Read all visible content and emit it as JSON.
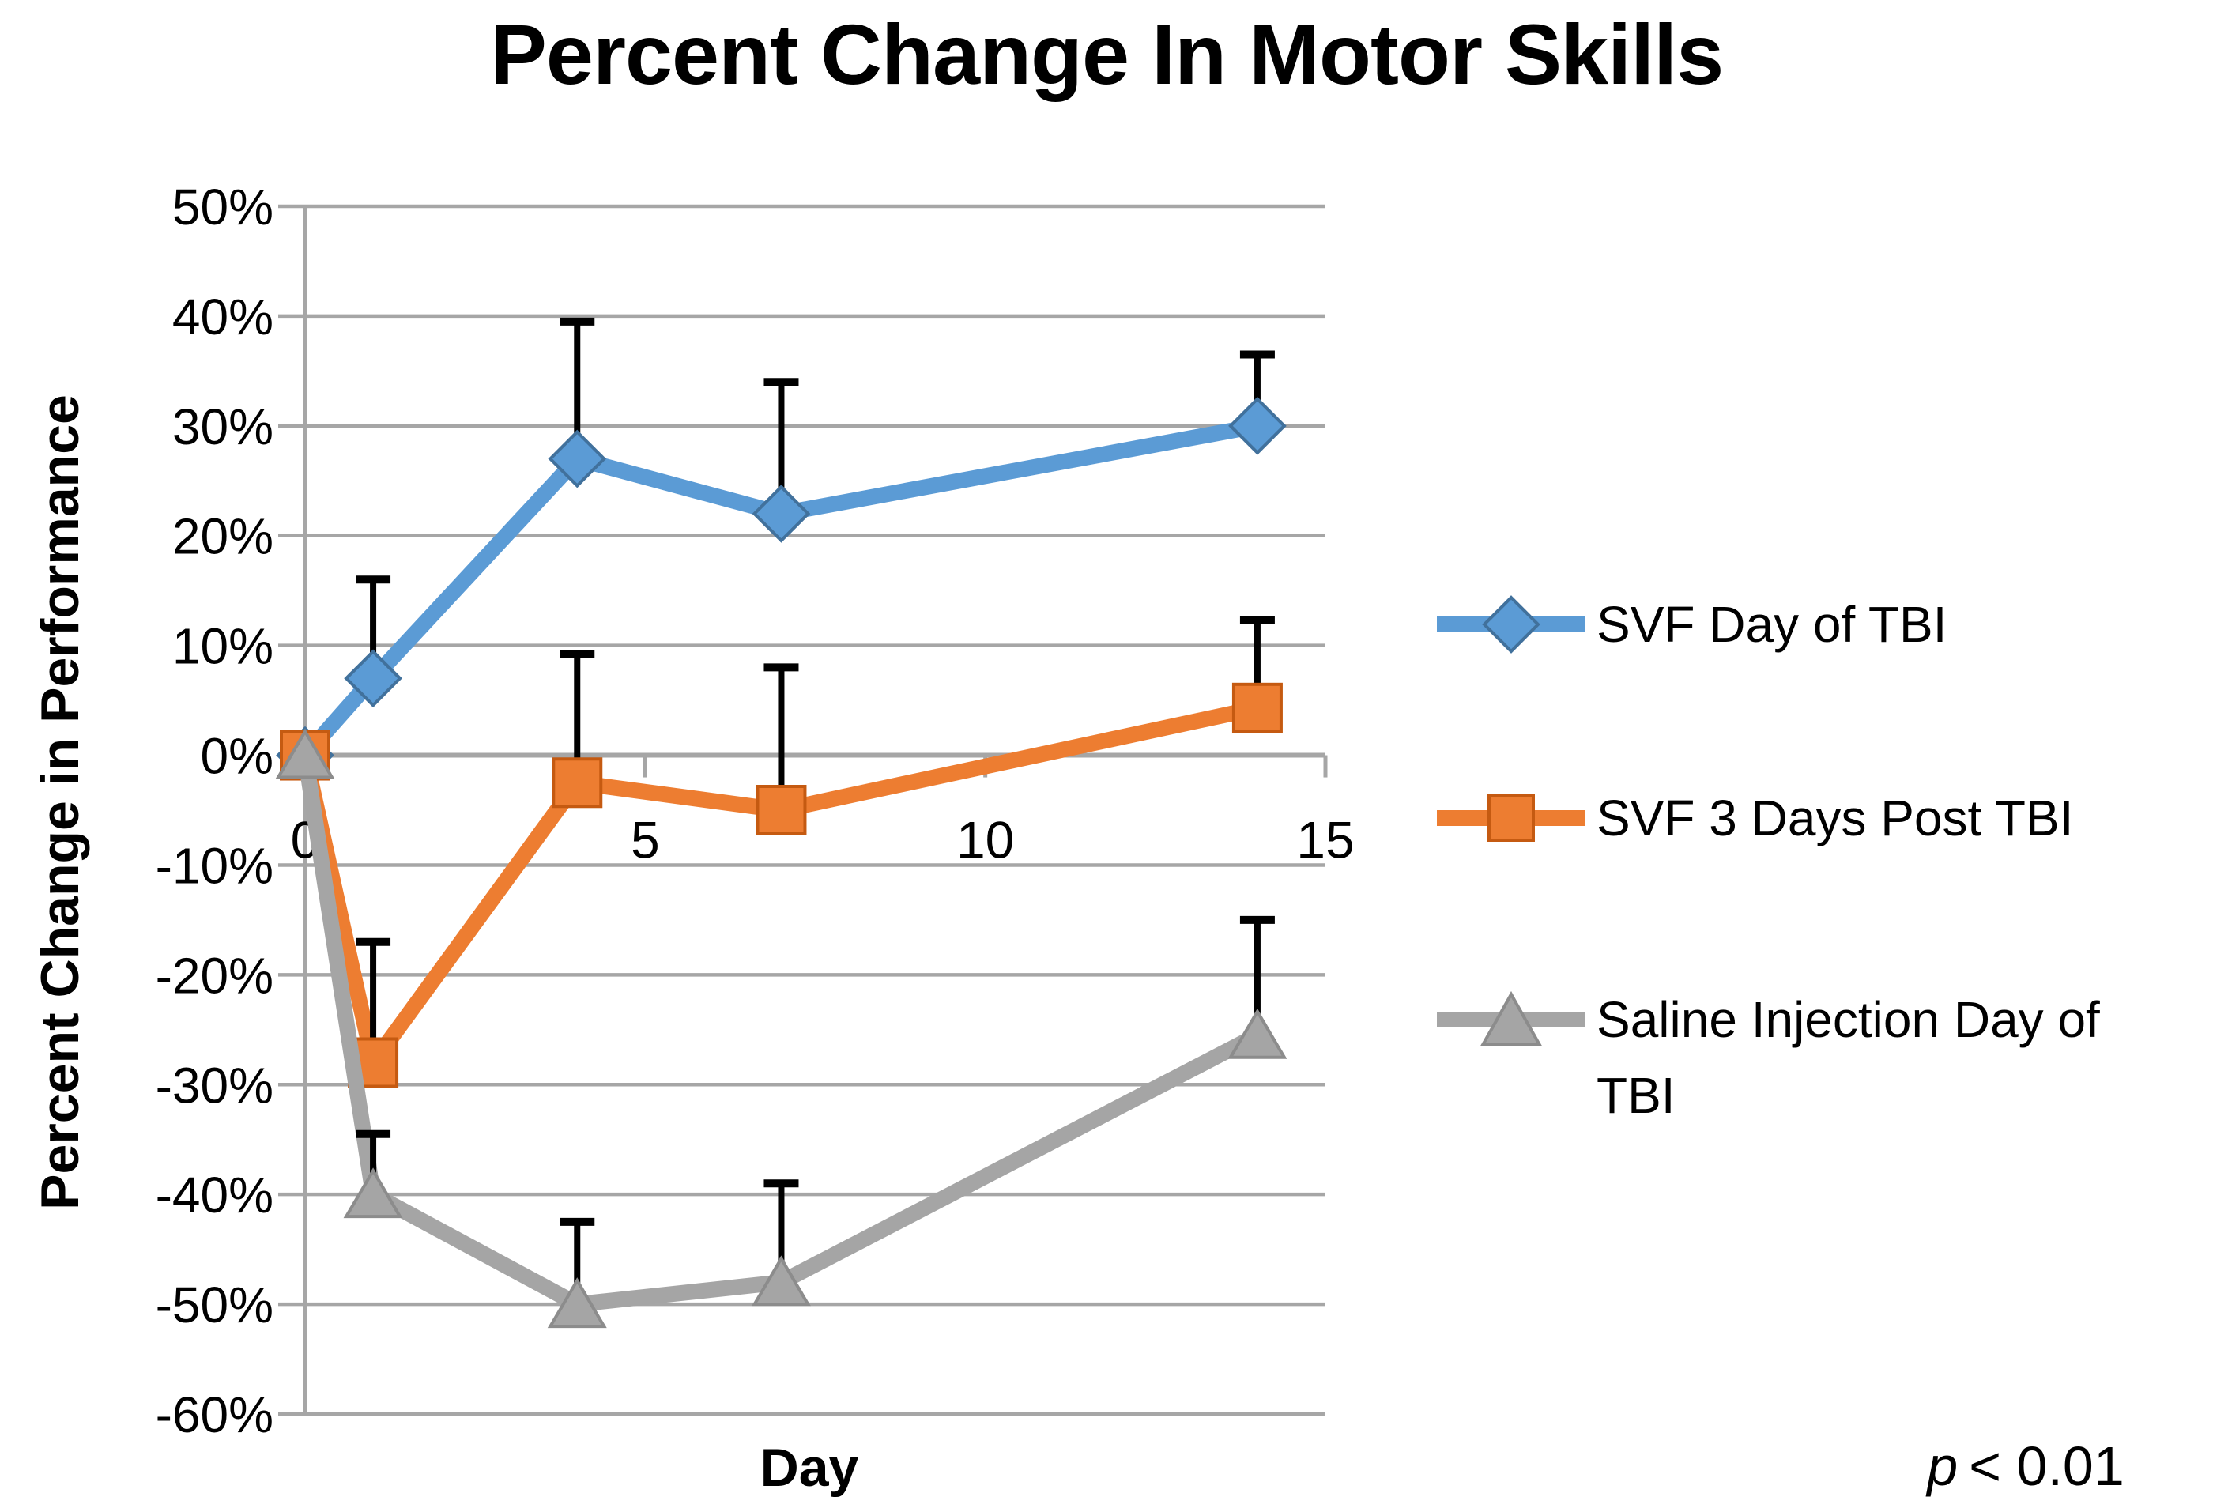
{
  "chart_data": {
    "type": "line",
    "title": "Percent Change In Motor Skills",
    "xlabel": "Day",
    "ylabel": "Percent Change in Performance",
    "xlim": [
      0,
      15
    ],
    "ylim": [
      -60,
      50
    ],
    "grid": true,
    "legend_position": "right",
    "error_bars": "upward only, black with caps",
    "x": [
      0,
      1,
      4,
      7,
      14
    ],
    "x_tick_values": [
      0,
      5,
      10,
      15
    ],
    "x_tick_labels": [
      "0",
      "5",
      "10",
      "15"
    ],
    "y_tick_values": [
      50,
      40,
      30,
      20,
      10,
      0,
      -10,
      -20,
      -30,
      -40,
      -50,
      -60
    ],
    "y_tick_labels": [
      "50%",
      "40%",
      "30%",
      "20%",
      "10%",
      "0%",
      "-10%",
      "-20%",
      "-30%",
      "-40%",
      "-50%",
      "-60%"
    ],
    "series": [
      {
        "name": "SVF Day of TBI",
        "color": "#5B9BD5",
        "edge_color": "#41719C",
        "marker": "diamond",
        "values": [
          0,
          7,
          27,
          22,
          30
        ],
        "error_up": [
          0,
          9,
          12.5,
          12,
          6.5
        ]
      },
      {
        "name": "SVF 3 Days Post TBI",
        "color": "#ED7D31",
        "edge_color": "#C55A11",
        "marker": "square",
        "values": [
          0,
          -28,
          -2.5,
          -5,
          4.3
        ],
        "error_up": [
          0,
          11,
          11.7,
          13,
          8
        ]
      },
      {
        "name": "Saline Injection Day of TBI",
        "color": "#A5A5A5",
        "edge_color": "#8C8C8C",
        "marker": "triangle",
        "values": [
          0,
          -40,
          -50,
          -48,
          -25.5
        ],
        "error_up": [
          0,
          5.5,
          7.5,
          9,
          10.5
        ]
      }
    ],
    "annotation_p": "p",
    "annotation_rest": "< 0.01"
  },
  "legend": {
    "items": [
      {
        "lines": [
          "SVF Day of TBI"
        ]
      },
      {
        "lines": [
          "SVF 3 Days Post TBI"
        ]
      },
      {
        "lines": [
          "Saline Injection Day of",
          "TBI"
        ]
      }
    ]
  },
  "colors": {
    "grid": "#A6A6A6",
    "axis": "#A6A6A6",
    "error_bar": "#000000",
    "background": "#FFFFFF",
    "text": "#000000"
  }
}
